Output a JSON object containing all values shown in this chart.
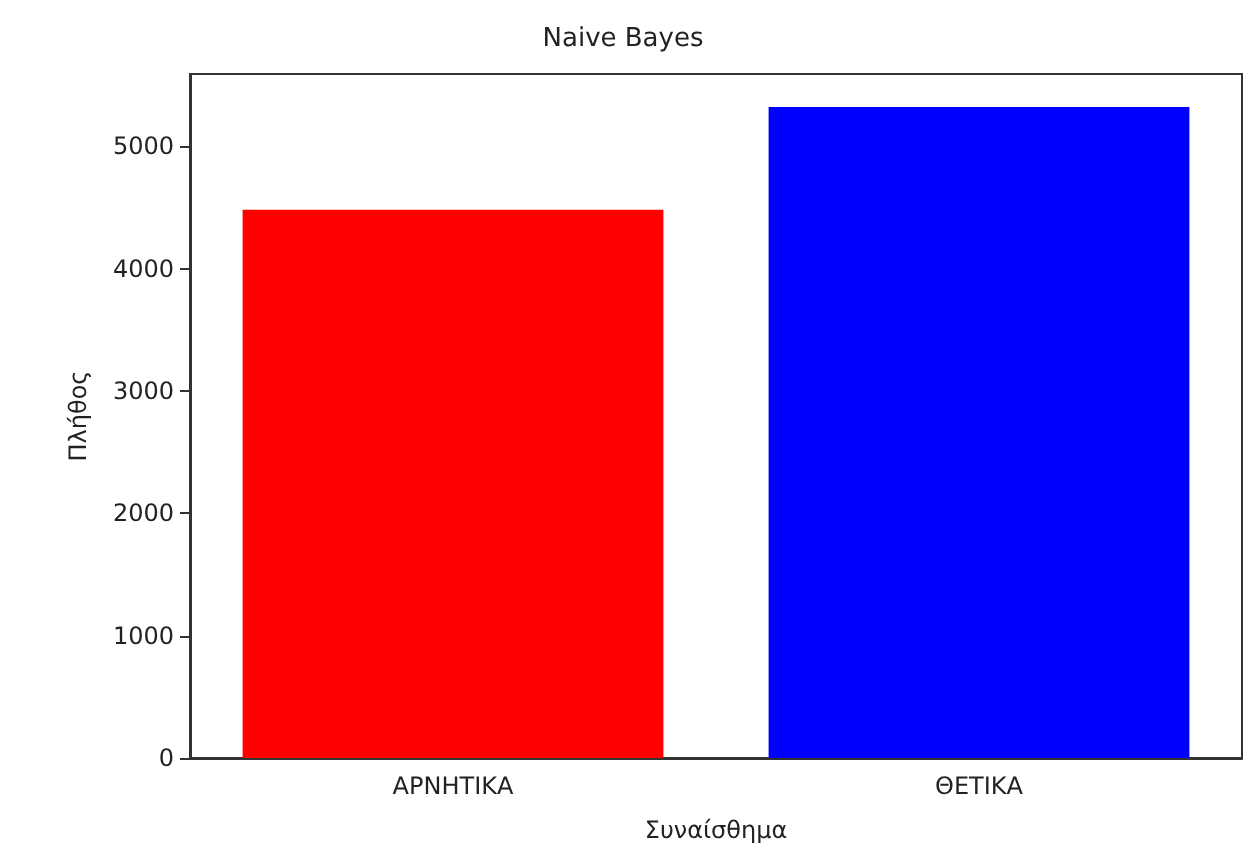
{
  "chart_data": {
    "type": "bar",
    "title": "Naive Bayes",
    "xlabel": "Συναίσθημα",
    "ylabel": "Πλήθος",
    "categories": [
      "ΑΡΝΗΤΙΚΑ",
      "ΘΕΤΙΚΑ"
    ],
    "values": [
      4480,
      5320
    ],
    "colors": [
      "#ff0000",
      "#0000ff"
    ],
    "ylim": [
      0,
      5590
    ],
    "yticks": [
      0,
      1000,
      2000,
      3000,
      4000,
      5000
    ],
    "grid": false
  }
}
